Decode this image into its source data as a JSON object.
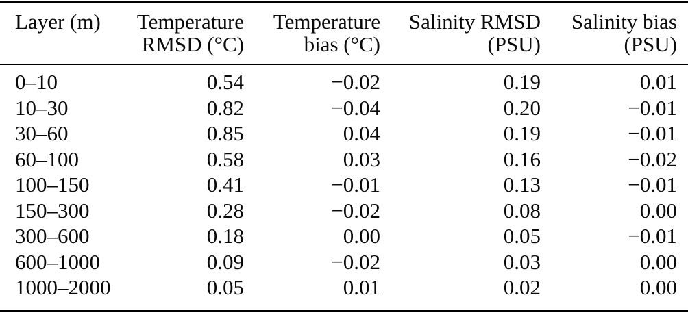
{
  "table": {
    "headers": [
      {
        "line1": "Layer (m)",
        "line2": ""
      },
      {
        "line1": "Temperature",
        "line2": "RMSD (°C)"
      },
      {
        "line1": "Temperature",
        "line2": "bias (°C)"
      },
      {
        "line1": "Salinity RMSD",
        "line2": "(PSU)"
      },
      {
        "line1": "Salinity bias",
        "line2": "(PSU)"
      }
    ],
    "rows": [
      {
        "layer": "0–10",
        "t_rmsd": "0.54",
        "t_bias": "−0.02",
        "s_rmsd": "0.19",
        "s_bias": "0.01"
      },
      {
        "layer": "10–30",
        "t_rmsd": "0.82",
        "t_bias": "−0.04",
        "s_rmsd": "0.20",
        "s_bias": "−0.01"
      },
      {
        "layer": "30–60",
        "t_rmsd": "0.85",
        "t_bias": "0.04",
        "s_rmsd": "0.19",
        "s_bias": "−0.01"
      },
      {
        "layer": "60–100",
        "t_rmsd": "0.58",
        "t_bias": "0.03",
        "s_rmsd": "0.16",
        "s_bias": "−0.02"
      },
      {
        "layer": "100–150",
        "t_rmsd": "0.41",
        "t_bias": "−0.01",
        "s_rmsd": "0.13",
        "s_bias": "−0.01"
      },
      {
        "layer": "150–300",
        "t_rmsd": "0.28",
        "t_bias": "−0.02",
        "s_rmsd": "0.08",
        "s_bias": "0.00"
      },
      {
        "layer": "300–600",
        "t_rmsd": "0.18",
        "t_bias": "0.00",
        "s_rmsd": "0.05",
        "s_bias": "−0.01"
      },
      {
        "layer": "600–1000",
        "t_rmsd": "0.09",
        "t_bias": "−0.02",
        "s_rmsd": "0.03",
        "s_bias": "0.00"
      },
      {
        "layer": "1000–2000",
        "t_rmsd": "0.05",
        "t_bias": "0.01",
        "s_rmsd": "0.02",
        "s_bias": "0.00"
      }
    ],
    "colors": {
      "text": "#0a0a0a",
      "background": "#ffffff",
      "rule": "#000000"
    }
  }
}
